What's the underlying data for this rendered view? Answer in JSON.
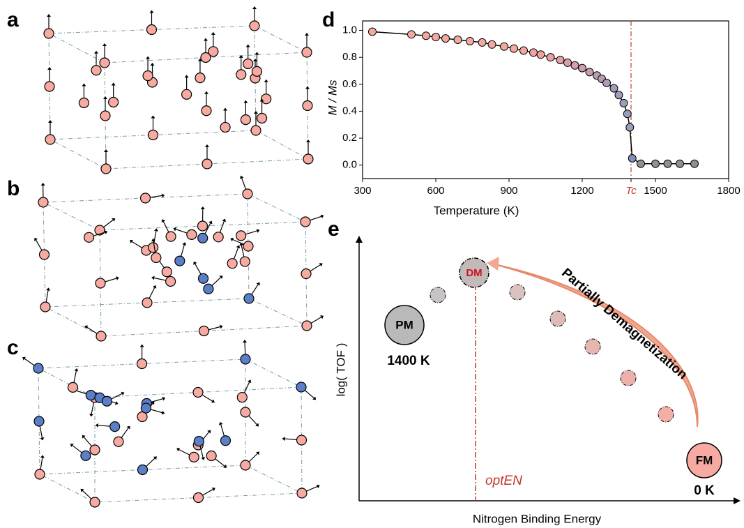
{
  "panel_labels": [
    "a",
    "b",
    "c",
    "d",
    "e"
  ],
  "chart_data": {
    "type": "line",
    "x": [
      340,
      500,
      560,
      600,
      640,
      690,
      740,
      790,
      830,
      880,
      920,
      960,
      1000,
      1030,
      1070,
      1110,
      1140,
      1170,
      1200,
      1230,
      1260,
      1280,
      1300,
      1330,
      1350,
      1370,
      1385,
      1395,
      1405,
      1440,
      1500,
      1550,
      1600,
      1660
    ],
    "series": [
      {
        "values": [
          0.99,
          0.97,
          0.96,
          0.95,
          0.94,
          0.93,
          0.92,
          0.91,
          0.895,
          0.88,
          0.865,
          0.85,
          0.835,
          0.82,
          0.8,
          0.78,
          0.76,
          0.74,
          0.72,
          0.69,
          0.665,
          0.64,
          0.61,
          0.57,
          0.52,
          0.46,
          0.38,
          0.28,
          0.05,
          0.01,
          0.01,
          0.01,
          0.01,
          0.01
        ],
        "color": "#000000",
        "marker_colors": [
          "#f4a9a0",
          "#f4a9a0",
          "#f4a9a0",
          "#f4a9a0",
          "#f4a9a0",
          "#f4a9a0",
          "#f4a9a0",
          "#f4a9a0",
          "#f4a9a0",
          "#f4a9a0",
          "#f4a9a0",
          "#f4a9a0",
          "#f2a5a0",
          "#eea2a0",
          "#eaa0a2",
          "#e3a0a5",
          "#dc9fa8",
          "#d49fab",
          "#cc9eae",
          "#c49eb1",
          "#bc9eb4",
          "#b49db6",
          "#ad9db8",
          "#a69dba",
          "#a09dbb",
          "#9b9dbc",
          "#989ebd",
          "#9a9fbd",
          "#7f8fb8",
          "#909090",
          "#909090",
          "#909090",
          "#909090",
          "#909090"
        ]
      }
    ],
    "xlim": [
      300,
      1800
    ],
    "ylim": [
      -0.1,
      1.07
    ],
    "xticks": [
      300,
      600,
      900,
      1200,
      {
        "value": 1400,
        "label": "Tc"
      },
      1500,
      1800
    ],
    "yticks": [
      {
        "value": 0,
        "label": "0.0"
      },
      {
        "value": 0.2,
        "label": "0.2"
      },
      {
        "value": 0.4,
        "label": "0.4"
      },
      {
        "value": 0.6,
        "label": "0.6"
      },
      {
        "value": 0.8,
        "label": "0.8"
      },
      {
        "value": 1,
        "label": "1.0"
      }
    ],
    "xlabel": "Temperature (K)",
    "ylabel": "M / Ms",
    "vline": 1400,
    "vline_color": "#c0392b"
  },
  "schematic": {
    "ylabel": "log( TOF )",
    "xlabel": "Nitrogen Binding Energy",
    "pm": "PM",
    "pm_temp": "1400 K",
    "dm": "DM",
    "fm": "FM",
    "fm_temp": "0 K",
    "arrow_label": "Partially Demagnetization",
    "opt_label": "optEN"
  }
}
